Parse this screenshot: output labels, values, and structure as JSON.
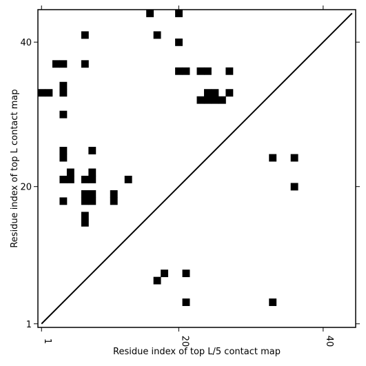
{
  "chart_data": {
    "type": "heatmap",
    "title": "",
    "xlabel": "Residue index of top L/5 contact map",
    "ylabel": "Residue index of top L contact map",
    "xlim": [
      0.5,
      44.5
    ],
    "ylim": [
      0.5,
      44.5
    ],
    "x_ticks": [
      1,
      20,
      40
    ],
    "y_ticks": [
      1,
      20,
      40
    ],
    "x_tick_labels": [
      "1",
      "20",
      "40"
    ],
    "y_tick_labels": [
      "1",
      "20",
      "40"
    ],
    "grid": false,
    "legend": "none",
    "cell_color": "#000000",
    "line_color": "#000000",
    "diagonal": [
      [
        1,
        1
      ],
      [
        44,
        44
      ]
    ],
    "cells": [
      [
        16,
        44
      ],
      [
        20,
        44
      ],
      [
        7,
        41
      ],
      [
        17,
        41
      ],
      [
        20,
        40
      ],
      [
        3,
        37
      ],
      [
        4,
        37
      ],
      [
        7,
        37
      ],
      [
        20,
        36
      ],
      [
        21,
        36
      ],
      [
        23,
        36
      ],
      [
        24,
        36
      ],
      [
        27,
        36
      ],
      [
        4,
        34
      ],
      [
        1,
        33
      ],
      [
        2,
        33
      ],
      [
        4,
        33
      ],
      [
        24,
        33
      ],
      [
        25,
        33
      ],
      [
        27,
        33
      ],
      [
        23,
        32
      ],
      [
        24,
        32
      ],
      [
        25,
        32
      ],
      [
        26,
        32
      ],
      [
        4,
        30
      ],
      [
        4,
        25
      ],
      [
        8,
        25
      ],
      [
        4,
        24
      ],
      [
        33,
        24
      ],
      [
        36,
        24
      ],
      [
        5,
        22
      ],
      [
        8,
        22
      ],
      [
        4,
        21
      ],
      [
        5,
        21
      ],
      [
        7,
        21
      ],
      [
        8,
        21
      ],
      [
        13,
        21
      ],
      [
        36,
        20
      ],
      [
        7,
        19
      ],
      [
        8,
        19
      ],
      [
        11,
        19
      ],
      [
        4,
        18
      ],
      [
        7,
        18
      ],
      [
        8,
        18
      ],
      [
        11,
        18
      ],
      [
        7,
        16
      ],
      [
        7,
        15
      ],
      [
        18,
        8
      ],
      [
        21,
        8
      ],
      [
        17,
        7
      ],
      [
        21,
        4
      ],
      [
        33,
        4
      ]
    ]
  }
}
